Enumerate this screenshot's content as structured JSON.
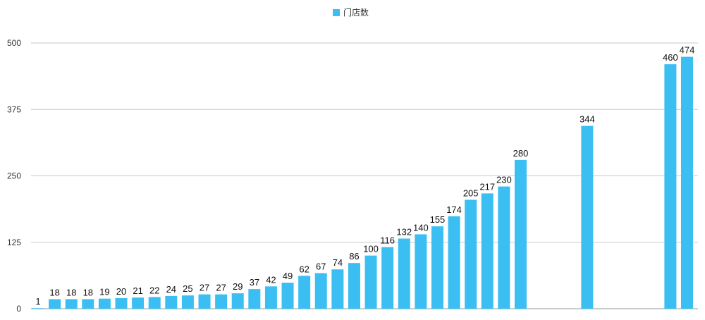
{
  "chart_data": {
    "type": "bar",
    "legend": {
      "label": "门店数",
      "position": "top-center",
      "color": "#3BBFF3"
    },
    "yticks": [
      "0",
      "125",
      "250",
      "375",
      "500"
    ],
    "ylim": [
      0,
      500
    ],
    "grid": true,
    "bar_color": "#3BBFF3",
    "values": [
      1,
      18,
      18,
      18,
      19,
      20,
      21,
      22,
      24,
      25,
      27,
      27,
      29,
      37,
      42,
      49,
      62,
      67,
      74,
      86,
      100,
      116,
      132,
      140,
      155,
      174,
      205,
      217,
      230,
      280,
      null,
      null,
      null,
      344,
      null,
      null,
      null,
      null,
      460,
      474
    ],
    "labels": [
      "1",
      "18",
      "18",
      "18",
      "19",
      "20",
      "21",
      "22",
      "24",
      "25",
      "27",
      "27",
      "29",
      "37",
      "42",
      "49",
      "62",
      "67",
      "74",
      "86",
      "100",
      "116",
      "132",
      "140",
      "155",
      "174",
      "205",
      "217",
      "230",
      "280",
      "",
      "",
      "",
      "344",
      "",
      "",
      "",
      "",
      "460",
      "474"
    ]
  }
}
